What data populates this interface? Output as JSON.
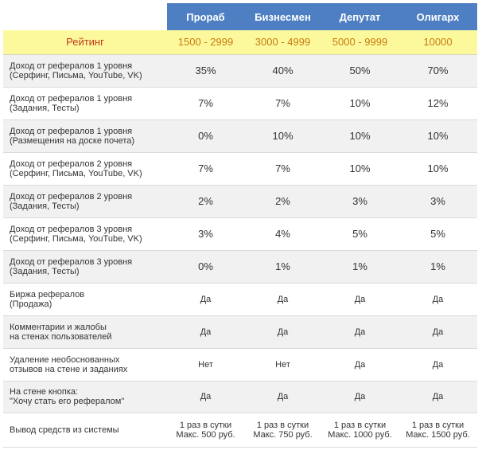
{
  "header": [
    "Прораб",
    "Бизнесмен",
    "Депутат",
    "Олигарх"
  ],
  "rating": {
    "label": "Рейтинг",
    "values": [
      "1500 - 2999",
      "3000 - 4999",
      "5000 - 9999",
      "10000"
    ]
  },
  "rows": [
    {
      "label": [
        "Доход от рефералов 1 уровня",
        "(Серфинг, Письма, YouTube, VK)"
      ],
      "values": [
        "35%",
        "40%",
        "50%",
        "70%"
      ]
    },
    {
      "label": [
        "Доход от рефералов 1 уровня",
        "(Задания, Тесты)"
      ],
      "values": [
        "7%",
        "7%",
        "10%",
        "12%"
      ]
    },
    {
      "label": [
        "Доход от рефералов 1 уровня",
        "(Размещения на доске почета)"
      ],
      "values": [
        "0%",
        "10%",
        "10%",
        "10%"
      ]
    },
    {
      "label": [
        "Доход от рефералов 2 уровня",
        "(Серфинг, Письма, YouTube, VK)"
      ],
      "values": [
        "7%",
        "7%",
        "10%",
        "10%"
      ]
    },
    {
      "label": [
        "Доход от рефералов 2 уровня",
        "(Задания, Тесты)"
      ],
      "values": [
        "2%",
        "2%",
        "3%",
        "3%"
      ]
    },
    {
      "label": [
        "Доход от рефералов 3 уровня",
        "(Серфинг, Письма, YouTube, VK)"
      ],
      "values": [
        "3%",
        "4%",
        "5%",
        "5%"
      ]
    },
    {
      "label": [
        "Доход от рефералов 3 уровня",
        "(Задания, Тесты)"
      ],
      "values": [
        "0%",
        "1%",
        "1%",
        "1%"
      ]
    },
    {
      "label": [
        "Биржа рефералов",
        "(Продажа)"
      ],
      "values": [
        "Да",
        "Да",
        "Да",
        "Да"
      ]
    },
    {
      "label": [
        "Комментарии и жалобы",
        "на стенах пользователей"
      ],
      "values": [
        "Да",
        "Да",
        "Да",
        "Да"
      ]
    },
    {
      "label": [
        "Удаление необоснованных",
        "отзывов на стене и заданиях"
      ],
      "values": [
        "Нет",
        "Нет",
        "Да",
        "Да"
      ]
    },
    {
      "label": [
        "На стене кнопка:",
        "\"Хочу стать его рефералом\""
      ],
      "values": [
        "Да",
        "Да",
        "Да",
        "Да"
      ]
    }
  ],
  "withdrawal": {
    "label": "Вывод средств из системы",
    "values": [
      [
        "1 раз в сутки",
        "Макс. 500 руб."
      ],
      [
        "1 раз в сутки",
        "Макс. 750 руб."
      ],
      [
        "1 раз в сутки",
        "Макс. 1000 руб."
      ],
      [
        "1 раз в сутки",
        "Макс. 1500 руб."
      ]
    ]
  }
}
